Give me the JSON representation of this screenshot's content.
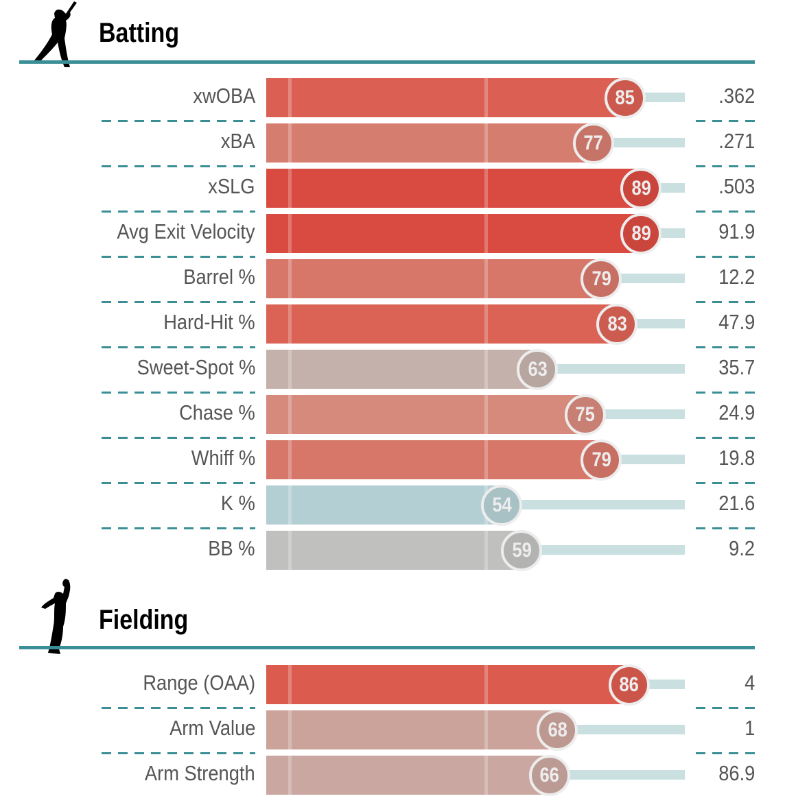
{
  "chart_data": [
    {
      "type": "bar",
      "title": "Batting",
      "xlim": [
        0,
        100
      ],
      "categories": [
        "xwOBA",
        "xBA",
        "xSLG",
        "Avg Exit Velocity",
        "Barrel %",
        "Hard-Hit %",
        "Sweet-Spot %",
        "Chase %",
        "Whiff %",
        "K %",
        "BB %"
      ],
      "percentiles": [
        85,
        77,
        89,
        89,
        79,
        83,
        63,
        75,
        79,
        54,
        59
      ],
      "values": [
        ".362",
        ".271",
        ".503",
        "91.9",
        "12.2",
        "47.9",
        "35.7",
        "24.9",
        "19.8",
        "21.6",
        "9.2"
      ],
      "colors": [
        "#db6053",
        "#d57d6f",
        "#d94a40",
        "#d94a40",
        "#d6776a",
        "#da6355",
        "#c5b1ab",
        "#d68a7c",
        "#d6776a",
        "#b4cfd3",
        "#c0c0bf"
      ]
    },
    {
      "type": "bar",
      "title": "Fielding",
      "xlim": [
        0,
        100
      ],
      "categories": [
        "Range (OAA)",
        "Arm Value",
        "Arm Strength"
      ],
      "percentiles": [
        86,
        68,
        66
      ],
      "values": [
        "4",
        "1",
        "86.9"
      ],
      "colors": [
        "#db5b4e",
        "#cba39b",
        "#caa7a0"
      ]
    }
  ],
  "colors": {
    "rule": "#3a8f96",
    "track": "#c9dfe0"
  },
  "icons": {
    "batting": "batter-silhouette-icon",
    "fielding": "fielder-silhouette-icon"
  }
}
